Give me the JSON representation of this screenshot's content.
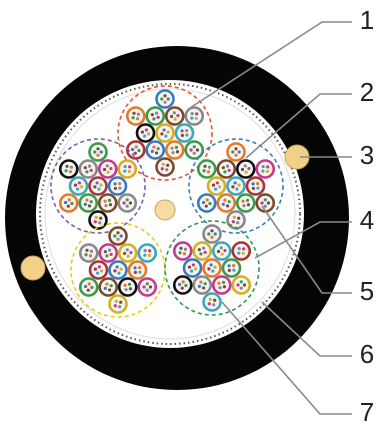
{
  "callouts": [
    {
      "label": "1"
    },
    {
      "label": "2"
    },
    {
      "label": "3"
    },
    {
      "label": "4"
    },
    {
      "label": "5"
    },
    {
      "label": "6"
    },
    {
      "label": "7"
    }
  ]
}
